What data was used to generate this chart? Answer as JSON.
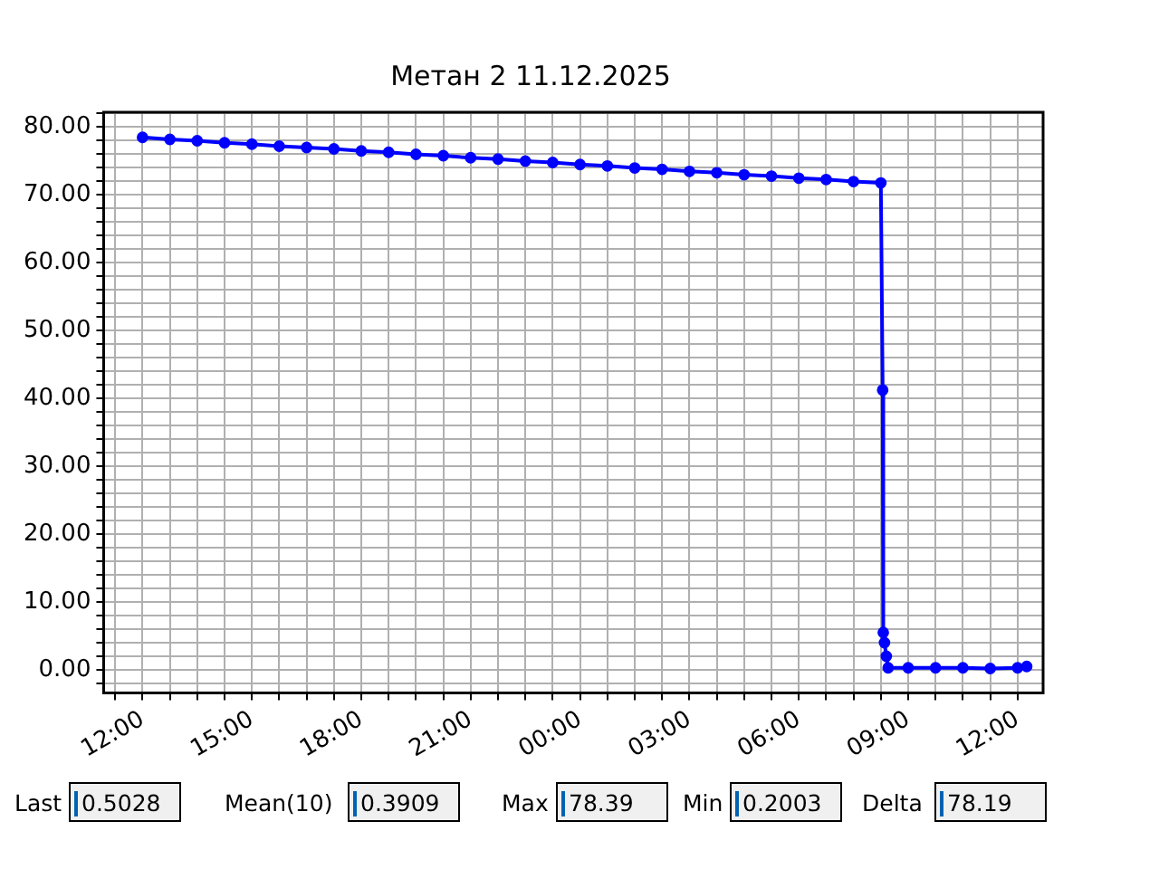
{
  "chart_data": {
    "type": "line",
    "title": "Метан 2 11.12.2025",
    "marker": "circle",
    "line_style": "solid",
    "grid": true,
    "legend": false,
    "xlim": [
      "2025-12-11T10:56",
      "2025-12-12T12:42"
    ],
    "xticks": [
      {
        "value": "2025-12-11T11:15",
        "label": null
      },
      {
        "value": "2025-12-11T12:00",
        "label": "12:00"
      },
      {
        "value": "2025-12-11T12:45",
        "label": null
      },
      {
        "value": "2025-12-11T13:30",
        "label": null
      },
      {
        "value": "2025-12-11T14:15",
        "label": null
      },
      {
        "value": "2025-12-11T15:00",
        "label": "15:00"
      },
      {
        "value": "2025-12-11T15:45",
        "label": null
      },
      {
        "value": "2025-12-11T16:30",
        "label": null
      },
      {
        "value": "2025-12-11T17:15",
        "label": null
      },
      {
        "value": "2025-12-11T18:00",
        "label": "18:00"
      },
      {
        "value": "2025-12-11T18:45",
        "label": null
      },
      {
        "value": "2025-12-11T19:30",
        "label": null
      },
      {
        "value": "2025-12-11T20:15",
        "label": null
      },
      {
        "value": "2025-12-11T21:00",
        "label": "21:00"
      },
      {
        "value": "2025-12-11T21:45",
        "label": null
      },
      {
        "value": "2025-12-11T22:30",
        "label": null
      },
      {
        "value": "2025-12-11T23:15",
        "label": null
      },
      {
        "value": "2025-12-12T00:00",
        "label": "00:00"
      },
      {
        "value": "2025-12-12T00:45",
        "label": null
      },
      {
        "value": "2025-12-12T01:30",
        "label": null
      },
      {
        "value": "2025-12-12T02:15",
        "label": null
      },
      {
        "value": "2025-12-12T03:00",
        "label": "03:00"
      },
      {
        "value": "2025-12-12T03:45",
        "label": null
      },
      {
        "value": "2025-12-12T04:30",
        "label": null
      },
      {
        "value": "2025-12-12T05:15",
        "label": null
      },
      {
        "value": "2025-12-12T06:00",
        "label": "06:00"
      },
      {
        "value": "2025-12-12T06:45",
        "label": null
      },
      {
        "value": "2025-12-12T07:30",
        "label": null
      },
      {
        "value": "2025-12-12T08:15",
        "label": null
      },
      {
        "value": "2025-12-12T09:00",
        "label": "09:00"
      },
      {
        "value": "2025-12-12T09:45",
        "label": null
      },
      {
        "value": "2025-12-12T10:30",
        "label": null
      },
      {
        "value": "2025-12-12T11:15",
        "label": null
      },
      {
        "value": "2025-12-12T12:00",
        "label": "12:00"
      }
    ],
    "ylim": [
      -3.4,
      82.1
    ],
    "yticks": [
      {
        "value": -2,
        "label": null
      },
      {
        "value": 0,
        "label": "0.00"
      },
      {
        "value": 2,
        "label": null
      },
      {
        "value": 4,
        "label": null
      },
      {
        "value": 6,
        "label": null
      },
      {
        "value": 8,
        "label": null
      },
      {
        "value": 10,
        "label": "10.00"
      },
      {
        "value": 12,
        "label": null
      },
      {
        "value": 14,
        "label": null
      },
      {
        "value": 16,
        "label": null
      },
      {
        "value": 18,
        "label": null
      },
      {
        "value": 20,
        "label": "20.00"
      },
      {
        "value": 22,
        "label": null
      },
      {
        "value": 24,
        "label": null
      },
      {
        "value": 26,
        "label": null
      },
      {
        "value": 28,
        "label": null
      },
      {
        "value": 30,
        "label": "30.00"
      },
      {
        "value": 32,
        "label": null
      },
      {
        "value": 34,
        "label": null
      },
      {
        "value": 36,
        "label": null
      },
      {
        "value": 38,
        "label": null
      },
      {
        "value": 40,
        "label": "40.00"
      },
      {
        "value": 42,
        "label": null
      },
      {
        "value": 44,
        "label": null
      },
      {
        "value": 46,
        "label": null
      },
      {
        "value": 48,
        "label": null
      },
      {
        "value": 50,
        "label": "50.00"
      },
      {
        "value": 52,
        "label": null
      },
      {
        "value": 54,
        "label": null
      },
      {
        "value": 56,
        "label": null
      },
      {
        "value": 58,
        "label": null
      },
      {
        "value": 60,
        "label": "60.00"
      },
      {
        "value": 62,
        "label": null
      },
      {
        "value": 64,
        "label": null
      },
      {
        "value": 66,
        "label": null
      },
      {
        "value": 68,
        "label": null
      },
      {
        "value": 70,
        "label": "70.00"
      },
      {
        "value": 72,
        "label": null
      },
      {
        "value": 74,
        "label": null
      },
      {
        "value": 76,
        "label": null
      },
      {
        "value": 78,
        "label": null
      },
      {
        "value": 80,
        "label": "80.00"
      },
      {
        "value": 82,
        "label": null
      }
    ],
    "series": [
      {
        "color": "#0000ff",
        "x": [
          "2025-12-11T12:00",
          "2025-12-11T12:45",
          "2025-12-11T13:30",
          "2025-12-11T14:15",
          "2025-12-11T15:00",
          "2025-12-11T15:45",
          "2025-12-11T16:30",
          "2025-12-11T17:15",
          "2025-12-11T18:00",
          "2025-12-11T18:45",
          "2025-12-11T19:30",
          "2025-12-11T20:15",
          "2025-12-11T21:00",
          "2025-12-11T21:45",
          "2025-12-11T22:30",
          "2025-12-11T23:15",
          "2025-12-12T00:00",
          "2025-12-12T00:45",
          "2025-12-12T01:30",
          "2025-12-12T02:15",
          "2025-12-12T03:00",
          "2025-12-12T03:45",
          "2025-12-12T04:30",
          "2025-12-12T05:15",
          "2025-12-12T06:00",
          "2025-12-12T06:45",
          "2025-12-12T07:30",
          "2025-12-12T08:15",
          "2025-12-12T08:18",
          "2025-12-12T08:19",
          "2025-12-12T08:21",
          "2025-12-12T08:24",
          "2025-12-12T08:27",
          "2025-12-12T09:00",
          "2025-12-12T09:45",
          "2025-12-12T10:30",
          "2025-12-12T11:15",
          "2025-12-12T12:00",
          "2025-12-12T12:15"
        ],
        "values": [
          78.4,
          78.1,
          77.9,
          77.6,
          77.4,
          77.1,
          76.9,
          76.7,
          76.4,
          76.2,
          75.9,
          75.7,
          75.4,
          75.2,
          74.9,
          74.7,
          74.4,
          74.2,
          73.9,
          73.7,
          73.4,
          73.2,
          72.9,
          72.7,
          72.4,
          72.2,
          71.9,
          71.7,
          41.2,
          5.5,
          4,
          2,
          0.3,
          0.3,
          0.3,
          0.3,
          0.2,
          0.3,
          0.5
        ]
      }
    ],
    "annotations": [
      "Last",
      "0.5028",
      "Mean(10)",
      "0.3909",
      "Max",
      "78.39",
      "Min",
      "0.2003",
      "Delta",
      "78.19"
    ]
  }
}
